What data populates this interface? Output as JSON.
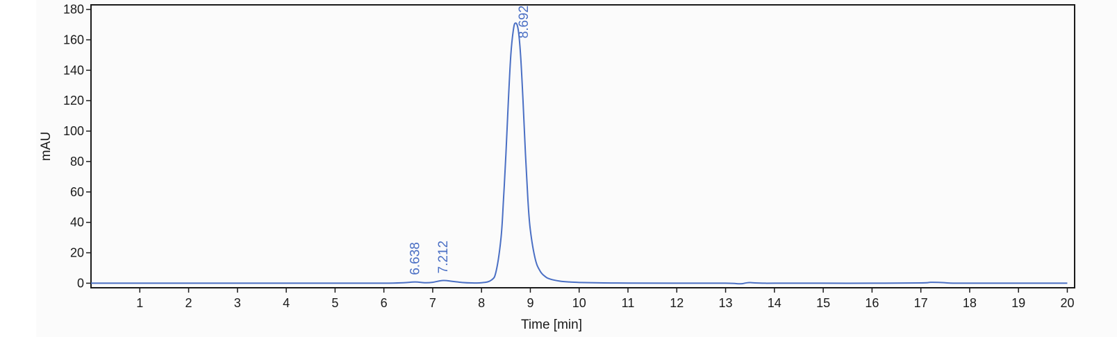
{
  "chart_data": {
    "type": "line",
    "xlabel": "Time [min]",
    "ylabel": "mAU",
    "xlim": [
      0,
      20.15
    ],
    "ylim": [
      -3,
      183
    ],
    "x_ticks": [
      1,
      2,
      3,
      4,
      5,
      6,
      7,
      8,
      9,
      10,
      11,
      12,
      13,
      14,
      15,
      16,
      17,
      18,
      19,
      20
    ],
    "y_ticks": [
      0,
      20,
      40,
      60,
      80,
      100,
      120,
      140,
      160,
      180
    ],
    "grid": false,
    "line_color": "#4a6fc4",
    "series": [
      {
        "x": [
          0.0,
          1.0,
          2.0,
          3.0,
          4.0,
          5.0,
          6.0,
          6.4,
          6.638,
          6.85,
          7.0,
          7.212,
          7.4,
          7.6,
          7.8,
          8.0,
          8.2,
          8.3,
          8.4,
          8.45,
          8.5,
          8.55,
          8.6,
          8.65,
          8.692,
          8.75,
          8.8,
          8.85,
          8.9,
          8.95,
          9.0,
          9.1,
          9.2,
          9.3,
          9.4,
          9.6,
          9.8,
          10.0,
          10.5,
          11.0,
          12.0,
          13.0,
          13.3,
          13.4,
          13.5,
          13.6,
          13.8,
          14.0,
          15.0,
          16.0,
          17.0,
          17.2,
          17.4,
          17.6,
          18.0,
          19.0,
          20.0
        ],
        "y": [
          0,
          0,
          0,
          0,
          0,
          0,
          0,
          0.3,
          0.8,
          0.3,
          0.6,
          1.8,
          1.2,
          0.5,
          0.2,
          0.3,
          2.0,
          8.0,
          30.0,
          55.0,
          85.0,
          120.0,
          150.0,
          166.0,
          171.0,
          167.0,
          150.0,
          120.0,
          85.0,
          55.0,
          35.0,
          16.0,
          8.0,
          4.5,
          2.8,
          1.4,
          0.8,
          0.5,
          0.2,
          0.1,
          0,
          0,
          -0.4,
          0.1,
          0.4,
          0.2,
          0,
          0,
          0,
          0,
          0.2,
          0.6,
          0.5,
          0.1,
          0,
          0,
          0
        ]
      }
    ],
    "annotations": [
      {
        "text": "6.638",
        "x": 6.638,
        "y": 0.8
      },
      {
        "text": "7.212",
        "x": 7.212,
        "y": 1.8
      },
      {
        "text": "8.692",
        "x": 8.692,
        "y": 171.0
      }
    ]
  }
}
